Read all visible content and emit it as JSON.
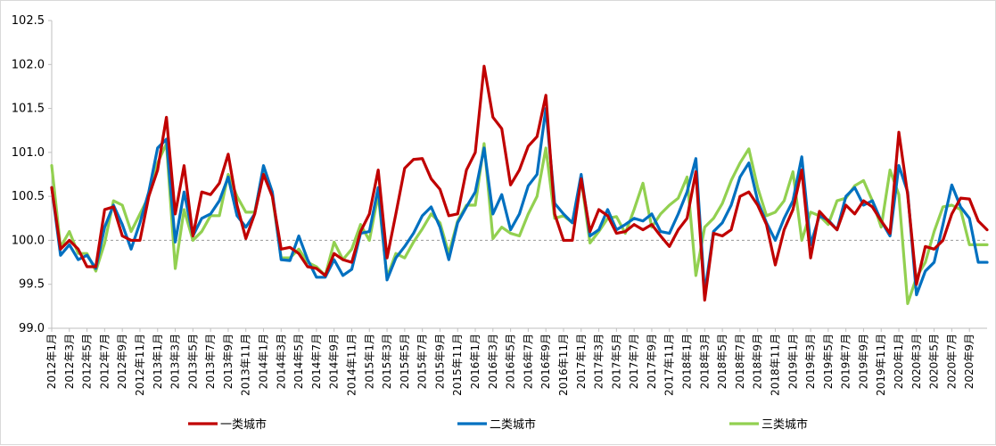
{
  "chart_data": {
    "type": "line",
    "title": "",
    "xlabel": "",
    "ylabel": "",
    "ylim": [
      99.0,
      102.5
    ],
    "yticks": [
      "99.0",
      "99.5",
      "100.0",
      "100.5",
      "101.0",
      "101.5",
      "102.0",
      "102.5"
    ],
    "reference_line": 100.0,
    "grid": false,
    "legend_position": "bottom",
    "x_tick_labels": [
      "2012年1月",
      "2012年3月",
      "2012年5月",
      "2012年7月",
      "2012年9月",
      "2012年11月",
      "2013年1月",
      "2013年3月",
      "2013年5月",
      "2013年7月",
      "2013年9月",
      "2013年11月",
      "2014年1月",
      "2014年3月",
      "2014年5月",
      "2014年7月",
      "2014年9月",
      "2014年11月",
      "2015年1月",
      "2015年3月",
      "2015年5月",
      "2015年7月",
      "2015年9月",
      "2015年11月",
      "2016年1月",
      "2016年3月",
      "2016年5月",
      "2016年7月",
      "2016年9月",
      "2016年11月",
      "2017年1月",
      "2017年3月",
      "2017年5月",
      "2017年7月",
      "2017年9月",
      "2017年11月",
      "2018年1月",
      "2018年3月",
      "2018年5月",
      "2018年7月",
      "2018年9月",
      "2018年11月",
      "2019年1月",
      "2019年3月",
      "2019年5月",
      "2019年7月",
      "2019年9月",
      "2019年11月",
      "2020年1月",
      "2020年3月",
      "2020年5月",
      "2020年7月",
      "2020年9月"
    ],
    "series": [
      {
        "name": "一类城市",
        "color": "#c00000",
        "values": [
          100.6,
          99.9,
          100.0,
          99.9,
          99.7,
          99.7,
          100.35,
          100.38,
          100.05,
          100.0,
          100.0,
          100.5,
          100.8,
          101.4,
          100.3,
          100.85,
          100.05,
          100.55,
          100.52,
          100.65,
          100.98,
          100.4,
          100.02,
          100.3,
          100.75,
          100.5,
          99.9,
          99.92,
          99.85,
          99.7,
          99.68,
          99.6,
          99.85,
          99.78,
          99.75,
          100.1,
          100.3,
          100.8,
          99.8,
          100.3,
          100.82,
          100.92,
          100.93,
          100.7,
          100.58,
          100.28,
          100.3,
          100.8,
          101.0,
          101.98,
          101.4,
          101.27,
          100.63,
          100.8,
          101.07,
          101.18,
          101.65,
          100.3,
          100.0,
          100.0,
          100.7,
          100.1,
          100.35,
          100.28,
          100.08,
          100.1,
          100.18,
          100.12,
          100.18,
          100.05,
          99.93,
          100.12,
          100.25,
          100.78,
          99.32,
          100.08,
          100.05,
          100.12,
          100.5,
          100.55,
          100.4,
          100.18,
          99.72,
          100.12,
          100.35,
          100.8,
          99.8,
          100.33,
          100.22,
          100.12,
          100.4,
          100.3,
          100.45,
          100.38,
          100.22,
          100.08,
          101.23,
          100.52,
          99.5,
          99.93,
          99.9,
          100.0,
          100.3,
          100.48,
          100.47,
          100.22,
          100.12
        ]
      },
      {
        "name": "二类城市",
        "color": "#0070c0",
        "values": [
          100.6,
          99.83,
          99.95,
          99.78,
          99.83,
          99.68,
          100.15,
          100.4,
          100.18,
          99.9,
          100.2,
          100.55,
          101.05,
          101.15,
          99.98,
          100.55,
          100.05,
          100.25,
          100.3,
          100.45,
          100.72,
          100.28,
          100.15,
          100.3,
          100.85,
          100.55,
          99.78,
          99.77,
          100.05,
          99.78,
          99.58,
          99.58,
          99.78,
          99.6,
          99.67,
          100.08,
          100.1,
          100.6,
          99.55,
          99.8,
          99.93,
          100.08,
          100.28,
          100.38,
          100.15,
          99.78,
          100.2,
          100.38,
          100.55,
          101.05,
          100.3,
          100.52,
          100.12,
          100.3,
          100.62,
          100.75,
          101.5,
          100.42,
          100.3,
          100.2,
          100.75,
          100.05,
          100.12,
          100.35,
          100.12,
          100.18,
          100.25,
          100.22,
          100.3,
          100.1,
          100.08,
          100.3,
          100.55,
          100.93,
          99.4,
          100.1,
          100.2,
          100.4,
          100.72,
          100.88,
          100.45,
          100.2,
          100.0,
          100.25,
          100.45,
          100.95,
          99.95,
          100.28,
          100.23,
          100.12,
          100.5,
          100.6,
          100.4,
          100.45,
          100.22,
          100.05,
          100.85,
          100.55,
          99.38,
          99.65,
          99.75,
          100.18,
          100.63,
          100.38,
          100.25,
          99.75,
          99.75
        ]
      },
      {
        "name": "三类城市",
        "color": "#92d050",
        "values": [
          100.85,
          99.92,
          100.1,
          99.85,
          99.85,
          99.65,
          99.97,
          100.45,
          100.4,
          100.1,
          100.3,
          100.5,
          100.88,
          101.1,
          99.68,
          100.35,
          100.0,
          100.1,
          100.28,
          100.28,
          100.75,
          100.5,
          100.32,
          100.32,
          100.82,
          100.5,
          99.8,
          99.8,
          99.9,
          99.75,
          99.7,
          99.6,
          99.98,
          99.78,
          99.9,
          100.18,
          100.0,
          100.52,
          99.58,
          99.85,
          99.8,
          99.98,
          100.13,
          100.3,
          100.2,
          99.85,
          100.22,
          100.4,
          100.4,
          101.1,
          100.02,
          100.15,
          100.08,
          100.05,
          100.3,
          100.5,
          101.05,
          100.25,
          100.28,
          100.2,
          100.7,
          99.97,
          100.1,
          100.25,
          100.27,
          100.08,
          100.35,
          100.65,
          100.15,
          100.3,
          100.4,
          100.48,
          100.72,
          99.6,
          100.15,
          100.25,
          100.42,
          100.68,
          100.88,
          101.04,
          100.6,
          100.28,
          100.32,
          100.45,
          100.78,
          100.0,
          100.32,
          100.28,
          100.18,
          100.45,
          100.48,
          100.62,
          100.68,
          100.45,
          100.15,
          100.8,
          100.52,
          99.28,
          99.58,
          99.75,
          100.1,
          100.38,
          100.4,
          100.35,
          99.95,
          99.95,
          99.95
        ]
      }
    ]
  }
}
